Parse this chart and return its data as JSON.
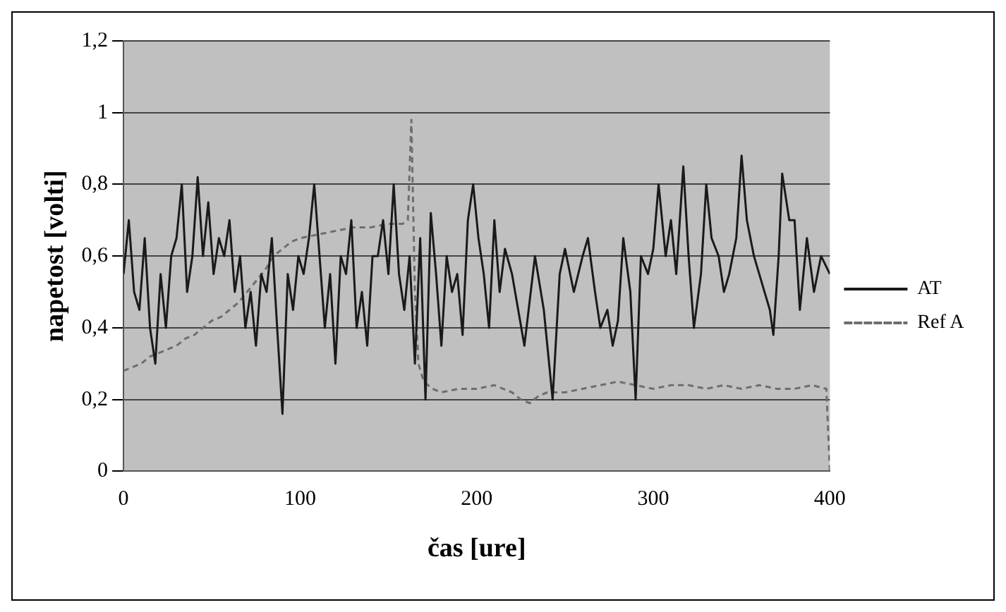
{
  "chart_data": {
    "type": "line",
    "xlabel": "čas [ure]",
    "ylabel": "napetost [volti]",
    "xlim": [
      0,
      400
    ],
    "xticks": [
      0,
      100,
      200,
      300,
      400
    ],
    "ylim": [
      0,
      1.2
    ],
    "yticks": [
      0,
      {
        "value": 0.2,
        "label": "0,2"
      },
      {
        "value": 0.4,
        "label": "0,4"
      },
      {
        "value": 0.6,
        "label": "0,6"
      },
      {
        "value": 0.8,
        "label": "0,8"
      },
      1,
      {
        "value": 1.2,
        "label": "1,2"
      }
    ],
    "grid": "y",
    "legend": "right",
    "marker": "none",
    "series": [
      {
        "name": "AT",
        "color": "#1a1a1a",
        "line_style": "solid",
        "x": [
          0,
          3,
          6,
          9,
          12,
          15,
          18,
          21,
          24,
          27,
          30,
          33,
          36,
          39,
          42,
          45,
          48,
          51,
          54,
          57,
          60,
          63,
          66,
          69,
          72,
          75,
          78,
          81,
          84,
          87,
          90,
          93,
          96,
          99,
          102,
          105,
          108,
          111,
          114,
          117,
          120,
          123,
          126,
          129,
          132,
          135,
          138,
          141,
          144,
          147,
          150,
          153,
          156,
          159,
          162,
          165,
          168,
          171,
          174,
          177,
          180,
          183,
          186,
          189,
          192,
          195,
          198,
          201,
          204,
          207,
          210,
          213,
          216,
          220,
          227,
          233,
          238,
          243,
          247,
          250,
          255,
          260,
          263,
          267,
          270,
          274,
          277,
          280,
          283,
          287,
          290,
          293,
          297,
          300,
          303,
          307,
          310,
          313,
          317,
          320,
          323,
          327,
          330,
          333,
          337,
          340,
          343,
          347,
          350,
          353,
          357,
          360,
          363,
          366,
          368,
          371,
          373,
          377,
          380,
          383,
          387,
          391,
          395,
          400
        ],
        "values": [
          0.55,
          0.7,
          0.5,
          0.45,
          0.65,
          0.4,
          0.3,
          0.55,
          0.4,
          0.6,
          0.65,
          0.8,
          0.5,
          0.6,
          0.82,
          0.6,
          0.75,
          0.55,
          0.65,
          0.6,
          0.7,
          0.5,
          0.6,
          0.4,
          0.5,
          0.35,
          0.55,
          0.5,
          0.65,
          0.4,
          0.16,
          0.55,
          0.45,
          0.6,
          0.55,
          0.65,
          0.8,
          0.6,
          0.4,
          0.55,
          0.3,
          0.6,
          0.55,
          0.7,
          0.4,
          0.5,
          0.35,
          0.6,
          0.6,
          0.7,
          0.55,
          0.8,
          0.55,
          0.45,
          0.6,
          0.3,
          0.65,
          0.2,
          0.72,
          0.55,
          0.35,
          0.6,
          0.5,
          0.55,
          0.38,
          0.7,
          0.8,
          0.65,
          0.55,
          0.4,
          0.7,
          0.5,
          0.62,
          0.55,
          0.35,
          0.6,
          0.45,
          0.2,
          0.55,
          0.62,
          0.5,
          0.6,
          0.65,
          0.5,
          0.4,
          0.45,
          0.35,
          0.42,
          0.65,
          0.5,
          0.2,
          0.6,
          0.55,
          0.62,
          0.8,
          0.6,
          0.7,
          0.55,
          0.85,
          0.6,
          0.4,
          0.55,
          0.8,
          0.65,
          0.6,
          0.5,
          0.55,
          0.65,
          0.88,
          0.7,
          0.6,
          0.55,
          0.5,
          0.45,
          0.38,
          0.6,
          0.83,
          0.7,
          0.7,
          0.45,
          0.65,
          0.5,
          0.6,
          0.55
        ]
      },
      {
        "name": "Ref A",
        "color": "#6e6e6e",
        "line_style": "dashed",
        "x": [
          0,
          5,
          10,
          15,
          20,
          25,
          30,
          35,
          40,
          45,
          50,
          55,
          60,
          65,
          70,
          75,
          80,
          85,
          90,
          95,
          100,
          110,
          120,
          130,
          140,
          150,
          158,
          161,
          163,
          165,
          167,
          170,
          175,
          180,
          190,
          200,
          210,
          220,
          225,
          230,
          235,
          240,
          250,
          260,
          270,
          280,
          290,
          300,
          310,
          320,
          330,
          340,
          350,
          360,
          370,
          380,
          390,
          398,
          400
        ],
        "values": [
          0.28,
          0.29,
          0.3,
          0.32,
          0.33,
          0.34,
          0.35,
          0.37,
          0.38,
          0.4,
          0.42,
          0.43,
          0.45,
          0.47,
          0.5,
          0.53,
          0.56,
          0.6,
          0.62,
          0.64,
          0.65,
          0.66,
          0.67,
          0.68,
          0.68,
          0.69,
          0.69,
          0.7,
          0.98,
          0.5,
          0.3,
          0.25,
          0.23,
          0.22,
          0.23,
          0.23,
          0.24,
          0.22,
          0.2,
          0.19,
          0.21,
          0.22,
          0.22,
          0.23,
          0.24,
          0.25,
          0.24,
          0.23,
          0.24,
          0.24,
          0.23,
          0.24,
          0.23,
          0.24,
          0.23,
          0.23,
          0.24,
          0.23,
          0
        ]
      }
    ]
  }
}
